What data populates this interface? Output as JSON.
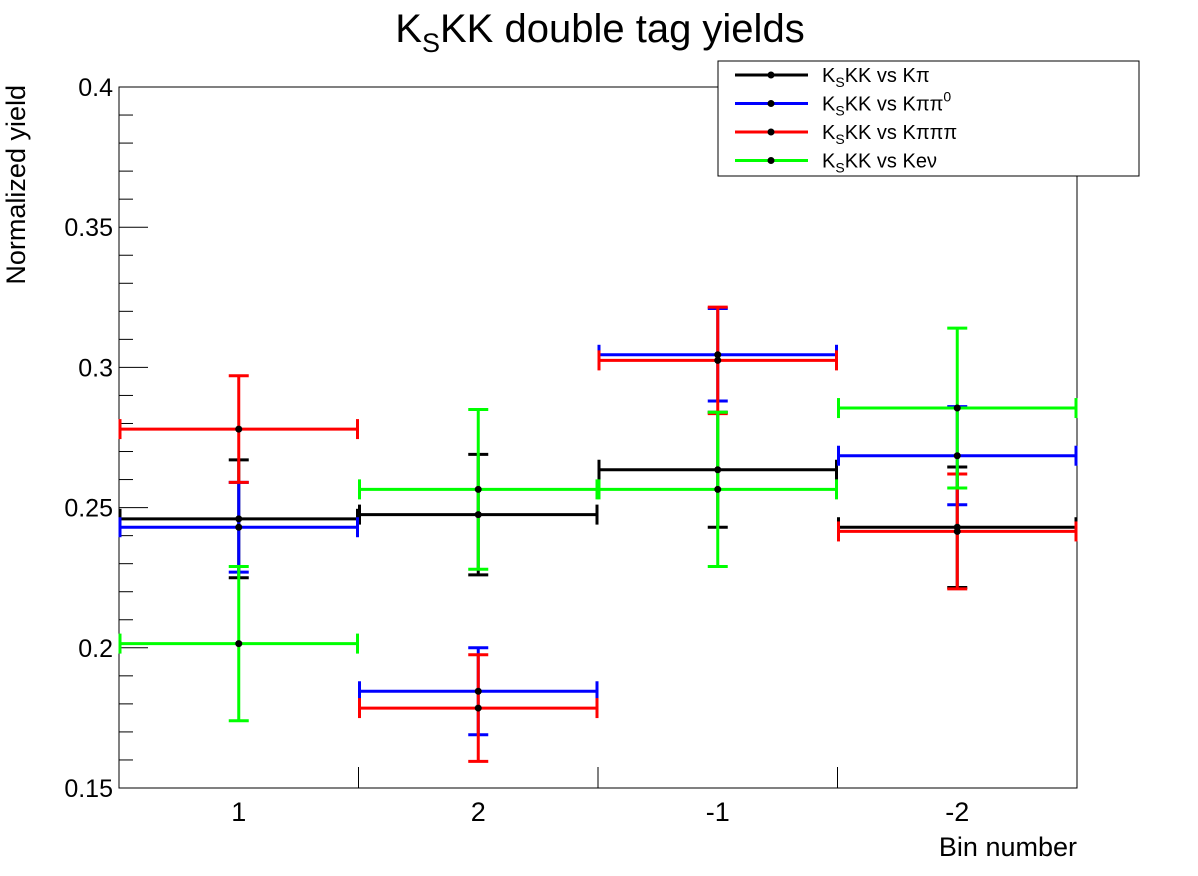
{
  "chart_data": {
    "type": "scatter",
    "title": {
      "base1": "K",
      "sub": "S",
      "base2": "KK double tag yields"
    },
    "xlabel": "Bin number",
    "ylabel": "Normalized yield",
    "ylim": [
      0.15,
      0.4
    ],
    "yticks": [
      "0.15",
      "0.2",
      "0.25",
      "0.3",
      "0.35",
      "0.4"
    ],
    "yticks_values": [
      0.15,
      0.2,
      0.25,
      0.3,
      0.35,
      0.4
    ],
    "categories": [
      "1",
      "2",
      "-1",
      "-2"
    ],
    "legend_position": "top-right",
    "grid": false,
    "series": [
      {
        "name": {
          "a": "K",
          "sub": "S",
          "b": "KK vs Kπ",
          "sup": ""
        },
        "color": "#000000",
        "values": [
          0.246,
          0.2475,
          0.2635,
          0.243
        ],
        "errors": [
          0.021,
          0.0215,
          0.0205,
          0.0215
        ]
      },
      {
        "name": {
          "a": "K",
          "sub": "S",
          "b": "KK vs Kππ",
          "sup": "0"
        },
        "color": "#0000ff",
        "values": [
          0.243,
          0.1845,
          0.3045,
          0.2685
        ],
        "errors": [
          0.016,
          0.0155,
          0.0165,
          0.0175
        ]
      },
      {
        "name": {
          "a": "K",
          "sub": "S",
          "b": "KK vs Kπππ",
          "sup": ""
        },
        "color": "#ff0000",
        "values": [
          0.278,
          0.1785,
          0.3025,
          0.2415
        ],
        "errors": [
          0.019,
          0.019,
          0.019,
          0.0205
        ]
      },
      {
        "name": {
          "a": "K",
          "sub": "S",
          "b": "KK vs Keν",
          "sup": ""
        },
        "color": "#00ff00",
        "values": [
          0.2015,
          0.2565,
          0.2565,
          0.2855
        ],
        "errors": [
          0.0275,
          0.0285,
          0.0275,
          0.0285
        ]
      }
    ]
  }
}
